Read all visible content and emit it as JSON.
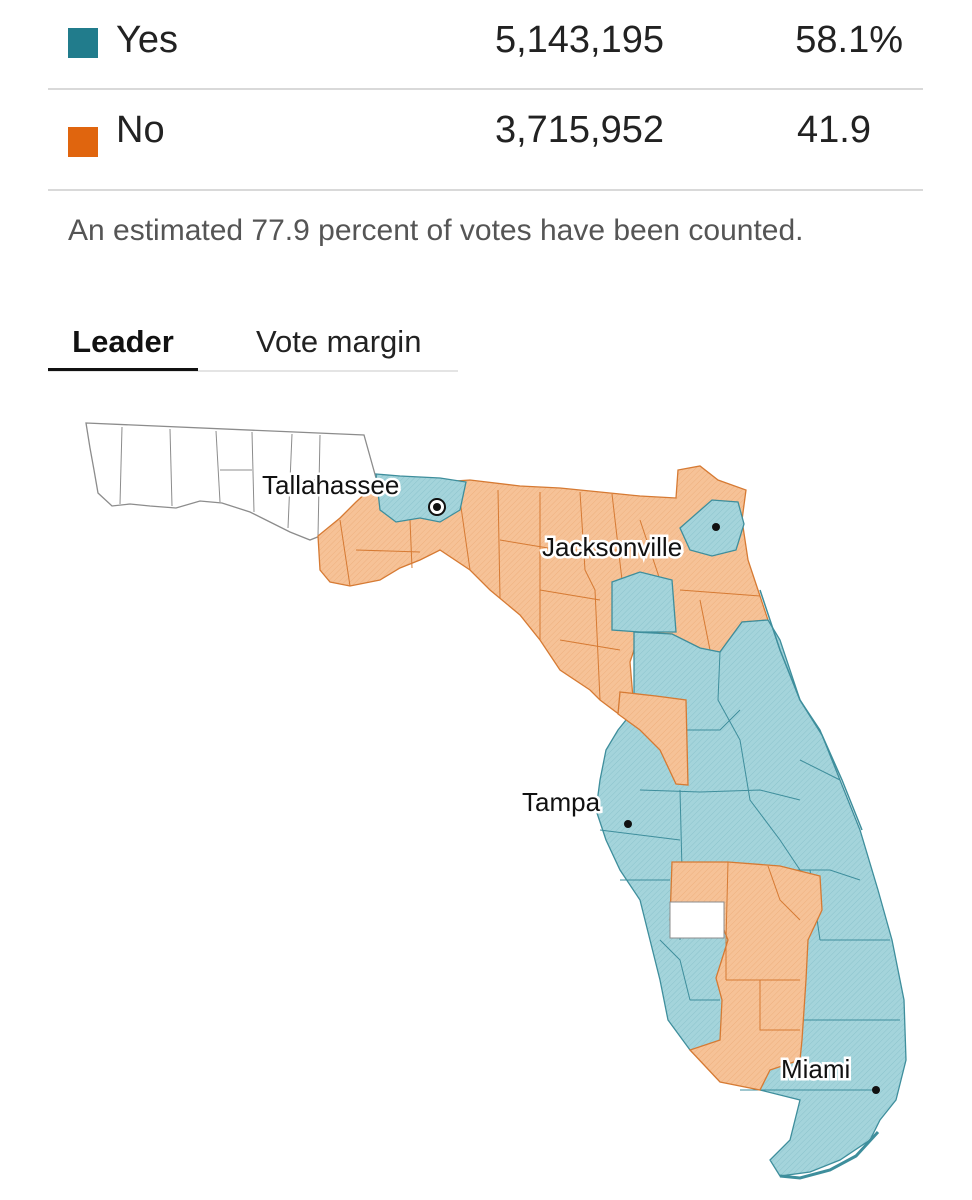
{
  "results": [
    {
      "label": "Yes",
      "votes": "5,143,195",
      "pct": "58.1%",
      "color": "#217c8c"
    },
    {
      "label": "No",
      "votes": "3,715,952",
      "pct": "41.9",
      "color": "#e0650e"
    }
  ],
  "note": "An estimated 77.9 percent of votes have been counted.",
  "tabs": {
    "active": "Leader",
    "inactive": "Vote margin"
  },
  "map": {
    "colors": {
      "yes_fill": "#a4d4db",
      "no_fill": "#f6c297",
      "yes_line": "#3e8e9c",
      "no_line": "#d67a33",
      "none_fill": "#ffffff",
      "none_line": "#8c8c8c"
    },
    "cities": [
      {
        "name": "Tallahassee",
        "marker": "capital"
      },
      {
        "name": "Jacksonville",
        "marker": "dot"
      },
      {
        "name": "Tampa",
        "marker": "dot"
      },
      {
        "name": "Miami",
        "marker": "dot"
      }
    ]
  }
}
